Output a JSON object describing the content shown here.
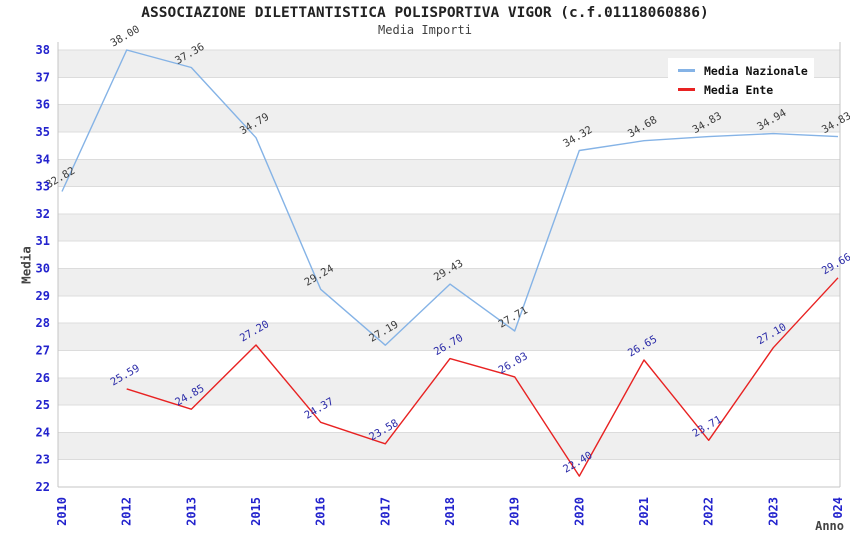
{
  "chart_data": {
    "type": "line",
    "title": "ASSOCIAZIONE DILETTANTISTICA POLISPORTIVA VIGOR (c.f.01118060886)",
    "subtitle": "Media Importi",
    "xlabel": "Anno",
    "ylabel": "Media",
    "categories": [
      "2010",
      "2012",
      "2013",
      "2015",
      "2016",
      "2017",
      "2018",
      "2019",
      "2020",
      "2021",
      "2022",
      "2023",
      "2024"
    ],
    "ylim": [
      22,
      38
    ],
    "ytick_step": 1,
    "grid": true,
    "banded_background": true,
    "legend_position": "top-right",
    "series": [
      {
        "name": "Media Nazionale",
        "color": "#85b3e6",
        "label_color": "#3c3c3c",
        "values": [
          32.82,
          38.0,
          37.36,
          34.79,
          29.24,
          27.19,
          29.43,
          27.71,
          34.32,
          34.68,
          34.83,
          34.94,
          34.83
        ]
      },
      {
        "name": "Media Ente",
        "color": "#e82222",
        "label_color": "#2b2ba8",
        "values": [
          null,
          25.59,
          24.85,
          27.2,
          24.37,
          23.58,
          26.7,
          26.03,
          22.4,
          26.65,
          23.71,
          27.1,
          29.66
        ]
      }
    ],
    "colors": {
      "tick_label": "#2323cd",
      "band": "#efefef",
      "gridline": "#dcdcdc",
      "plot_border": "#c4c4c4",
      "axis_title": "#444444",
      "title": "#222222"
    }
  }
}
